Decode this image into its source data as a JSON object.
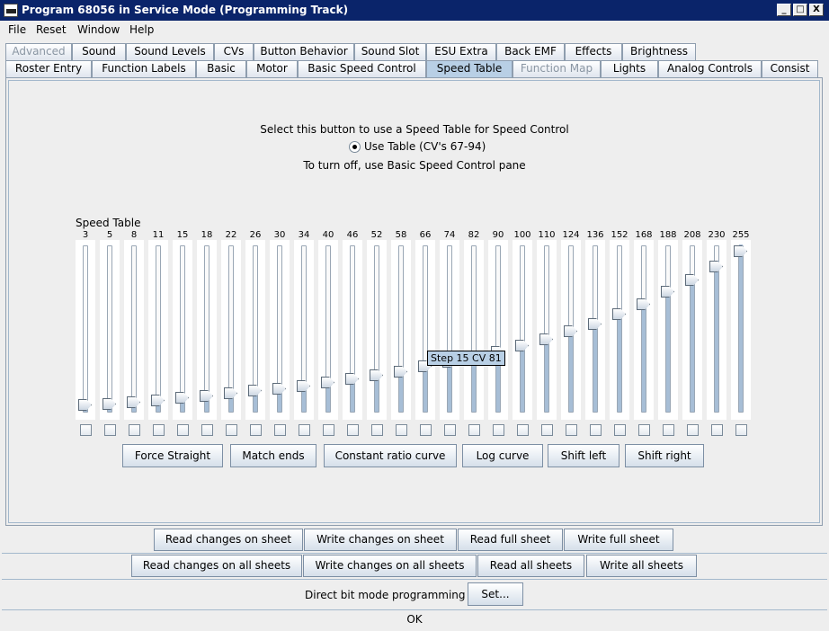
{
  "window": {
    "title": "Program 68056 in Service Mode (Programming Track)",
    "controls": [
      "_",
      "□",
      "X"
    ]
  },
  "menu": [
    "File",
    "Reset",
    "Window",
    "Help"
  ],
  "tabs_row1": [
    {
      "label": "Advanced",
      "disabled": true
    },
    {
      "label": "Sound"
    },
    {
      "label": "Sound Levels"
    },
    {
      "label": "CVs"
    },
    {
      "label": "Button Behavior"
    },
    {
      "label": "Sound Slot"
    },
    {
      "label": "ESU Extra"
    },
    {
      "label": "Back EMF"
    },
    {
      "label": "Effects"
    },
    {
      "label": "Brightness"
    }
  ],
  "tabs_row2": [
    {
      "label": "Roster Entry"
    },
    {
      "label": "Function Labels"
    },
    {
      "label": "Basic"
    },
    {
      "label": "Motor"
    },
    {
      "label": "Basic Speed Control"
    },
    {
      "label": "Speed Table",
      "selected": true
    },
    {
      "label": "Function Map",
      "disabled": true
    },
    {
      "label": "Lights"
    },
    {
      "label": "Analog Controls"
    },
    {
      "label": "Consist"
    }
  ],
  "speed_panel": {
    "instruction": "Select this button to use a Speed Table for Speed Control",
    "radio_label": "Use Table (CV's 67-94)",
    "radio_selected": true,
    "off_note": "To turn off, use Basic Speed Control pane",
    "table_label": "Speed Table",
    "tooltip": "Step 15 CV 81"
  },
  "speed_table": {
    "max": 255,
    "steps": [
      3,
      5,
      8,
      11,
      15,
      18,
      22,
      26,
      30,
      34,
      40,
      46,
      52,
      58,
      66,
      74,
      82,
      90,
      100,
      110,
      124,
      136,
      152,
      168,
      188,
      208,
      230,
      255
    ]
  },
  "curve_buttons": [
    "Force Straight",
    "Match ends",
    "Constant ratio curve",
    "Log curve",
    "Shift left",
    "Shift right"
  ],
  "sheet_buttons": [
    "Read changes on sheet",
    "Write changes on sheet",
    "Read full sheet",
    "Write full sheet"
  ],
  "all_buttons": [
    "Read changes on all sheets",
    "Write changes on all sheets",
    "Read all sheets",
    "Write all sheets"
  ],
  "footer": {
    "direct_bit_label": "Direct bit mode programming",
    "set_button": "Set...",
    "status": "OK"
  }
}
